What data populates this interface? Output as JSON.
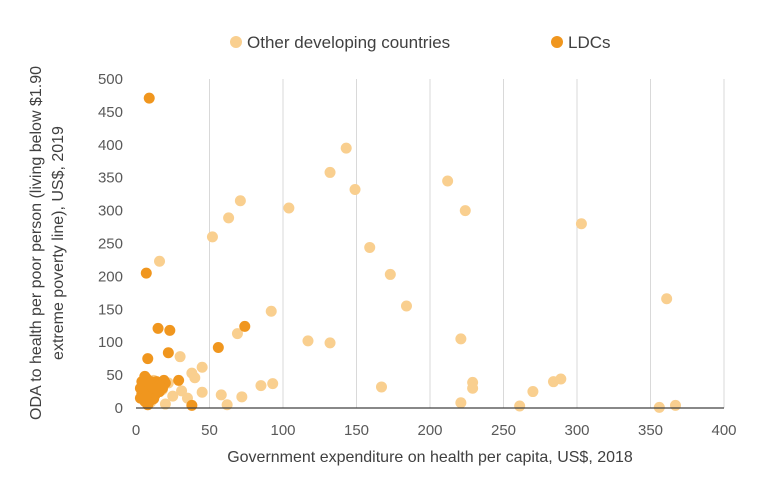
{
  "chart_data": {
    "type": "scatter",
    "xlabel": "Government expenditure on health per capita, US$, 2018",
    "ylabel_lines": [
      "ODA to health per poor person (living below $1.90",
      "extreme poverty line), US$, 2019"
    ],
    "xlim": [
      0,
      400
    ],
    "ylim": [
      0,
      500
    ],
    "xticks": [
      0,
      50,
      100,
      150,
      200,
      250,
      300,
      350,
      400
    ],
    "yticks": [
      0,
      50,
      100,
      150,
      200,
      250,
      300,
      350,
      400,
      450,
      500
    ],
    "grid": "vertical",
    "legend_position": "top",
    "series": [
      {
        "name": "Other developing countries",
        "color": "#f9cf8f",
        "points": [
          [
            143,
            395
          ],
          [
            132,
            358
          ],
          [
            149,
            332
          ],
          [
            71,
            315
          ],
          [
            63,
            289
          ],
          [
            104,
            304
          ],
          [
            52,
            260
          ],
          [
            16,
            223
          ],
          [
            159,
            244
          ],
          [
            173,
            203
          ],
          [
            184,
            155
          ],
          [
            212,
            345
          ],
          [
            224,
            300
          ],
          [
            303,
            280
          ],
          [
            361,
            166
          ],
          [
            92,
            147
          ],
          [
            69,
            113
          ],
          [
            117,
            102
          ],
          [
            132,
            99
          ],
          [
            221,
            105
          ],
          [
            30,
            78
          ],
          [
            45,
            62
          ],
          [
            38,
            53
          ],
          [
            40,
            46
          ],
          [
            85,
            34
          ],
          [
            93,
            37
          ],
          [
            167,
            32
          ],
          [
            229,
            39
          ],
          [
            229,
            30
          ],
          [
            270,
            25
          ],
          [
            284,
            40
          ],
          [
            289,
            44
          ],
          [
            31,
            26
          ],
          [
            45,
            24
          ],
          [
            58,
            20
          ],
          [
            72,
            17
          ],
          [
            35,
            15
          ],
          [
            20,
            6
          ],
          [
            62,
            5
          ],
          [
            221,
            8
          ],
          [
            261,
            3
          ],
          [
            356,
            1
          ],
          [
            367,
            4
          ],
          [
            10,
            9
          ],
          [
            12,
            15
          ],
          [
            8,
            20
          ],
          [
            15,
            35
          ],
          [
            12,
            42
          ],
          [
            22,
            38
          ],
          [
            18,
            28
          ],
          [
            25,
            18
          ],
          [
            9,
            12
          ]
        ]
      },
      {
        "name": "LDCs",
        "color": "#f0961e",
        "points": [
          [
            9,
            471
          ],
          [
            7,
            205
          ],
          [
            74,
            124
          ],
          [
            15,
            121
          ],
          [
            23,
            118
          ],
          [
            56,
            92
          ],
          [
            22,
            84
          ],
          [
            8,
            75
          ],
          [
            29,
            42
          ],
          [
            38,
            4
          ],
          [
            3,
            15
          ],
          [
            4,
            22
          ],
          [
            3,
            30
          ],
          [
            5,
            38
          ],
          [
            6,
            48
          ],
          [
            7,
            45
          ],
          [
            8,
            32
          ],
          [
            8,
            25
          ],
          [
            9,
            18
          ],
          [
            10,
            12
          ],
          [
            11,
            28
          ],
          [
            12,
            35
          ],
          [
            13,
            20
          ],
          [
            14,
            40
          ],
          [
            15,
            32
          ],
          [
            16,
            25
          ],
          [
            17,
            38
          ],
          [
            18,
            30
          ],
          [
            19,
            42
          ],
          [
            20,
            38
          ],
          [
            6,
            10
          ],
          [
            8,
            5
          ],
          [
            10,
            40
          ],
          [
            11,
            22
          ],
          [
            5,
            28
          ],
          [
            9,
            36
          ],
          [
            12,
            14
          ],
          [
            14,
            28
          ],
          [
            7,
            18
          ],
          [
            16,
            34
          ],
          [
            4,
            40
          ],
          [
            13,
            30
          ]
        ]
      }
    ]
  }
}
